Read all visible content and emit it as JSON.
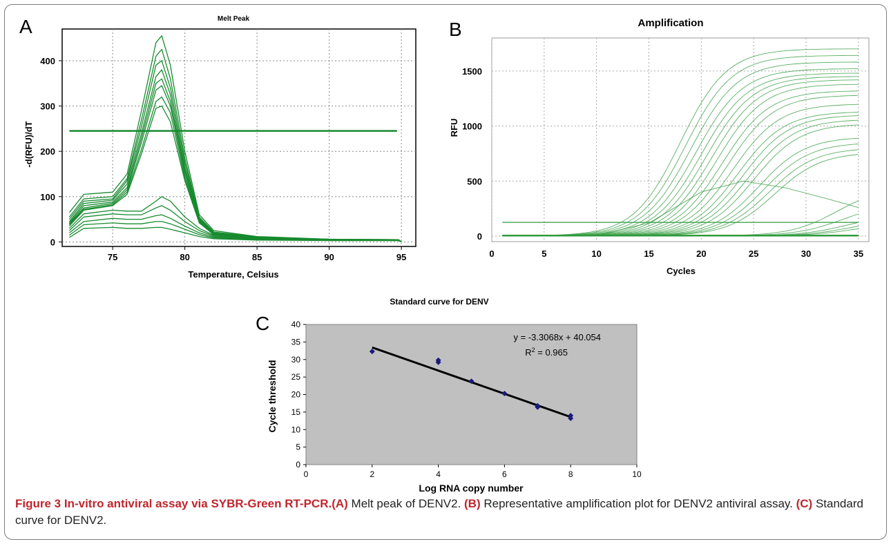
{
  "chart_data": [
    {
      "panel": "A",
      "type": "line",
      "title": "Melt Peak",
      "xlabel": "Temperature, Celsius",
      "ylabel": "-d(RFU)/dT",
      "xlim": [
        71.5,
        96
      ],
      "ylim": [
        -10,
        470
      ],
      "x_ticks": [
        75,
        80,
        85,
        90,
        95
      ],
      "y_ticks": [
        0,
        100,
        200,
        300,
        400
      ],
      "grid": true,
      "threshold": 245,
      "color": "#178a2f",
      "series": [
        {
          "values": [
            [
              72,
              65
            ],
            [
              73,
              105
            ],
            [
              75,
              110
            ],
            [
              76,
              150
            ],
            [
              77,
              290
            ],
            [
              78,
              440
            ],
            [
              78.4,
              455
            ],
            [
              79,
              390
            ],
            [
              80,
              200
            ],
            [
              81,
              60
            ],
            [
              82,
              25
            ],
            [
              85,
              12
            ],
            [
              90,
              6
            ],
            [
              94.8,
              5
            ],
            [
              95,
              0
            ]
          ]
        },
        {
          "values": [
            [
              72,
              55
            ],
            [
              73,
              95
            ],
            [
              75,
              100
            ],
            [
              76,
              140
            ],
            [
              77,
              270
            ],
            [
              78,
              410
            ],
            [
              78.4,
              425
            ],
            [
              79,
              360
            ],
            [
              80,
              185
            ],
            [
              81,
              55
            ],
            [
              82,
              22
            ],
            [
              85,
              11
            ],
            [
              90,
              6
            ],
            [
              94.8,
              5
            ],
            [
              95,
              0
            ]
          ]
        },
        {
          "values": [
            [
              72,
              50
            ],
            [
              73,
              90
            ],
            [
              75,
              95
            ],
            [
              76,
              135
            ],
            [
              77,
              255
            ],
            [
              78,
              390
            ],
            [
              78.4,
              400
            ],
            [
              79,
              340
            ],
            [
              80,
              175
            ],
            [
              81,
              52
            ],
            [
              82,
              20
            ],
            [
              85,
              10
            ],
            [
              90,
              6
            ],
            [
              94.8,
              5
            ],
            [
              95,
              0
            ]
          ]
        },
        {
          "values": [
            [
              72,
              45
            ],
            [
              73,
              85
            ],
            [
              75,
              92
            ],
            [
              76,
              128
            ],
            [
              77,
              240
            ],
            [
              78,
              365
            ],
            [
              78.4,
              380
            ],
            [
              79,
              325
            ],
            [
              80,
              165
            ],
            [
              81,
              50
            ],
            [
              82,
              20
            ],
            [
              85,
              10
            ],
            [
              90,
              5
            ],
            [
              94.8,
              5
            ],
            [
              95,
              0
            ]
          ]
        },
        {
          "values": [
            [
              72,
              42
            ],
            [
              73,
              80
            ],
            [
              75,
              88
            ],
            [
              76,
              120
            ],
            [
              77,
              230
            ],
            [
              78,
              350
            ],
            [
              78.4,
              360
            ],
            [
              79,
              310
            ],
            [
              80,
              158
            ],
            [
              81,
              48
            ],
            [
              82,
              19
            ],
            [
              85,
              9
            ],
            [
              90,
              5
            ],
            [
              94.8,
              4
            ],
            [
              95,
              0
            ]
          ]
        },
        {
          "values": [
            [
              72,
              40
            ],
            [
              73,
              75
            ],
            [
              75,
              85
            ],
            [
              76,
              115
            ],
            [
              77,
              220
            ],
            [
              78,
              335
            ],
            [
              78.4,
              345
            ],
            [
              79,
              300
            ],
            [
              80,
              150
            ],
            [
              81,
              46
            ],
            [
              82,
              18
            ],
            [
              85,
              9
            ],
            [
              90,
              5
            ],
            [
              94.8,
              4
            ],
            [
              95,
              0
            ]
          ]
        },
        {
          "values": [
            [
              72,
              38
            ],
            [
              73,
              72
            ],
            [
              75,
              82
            ],
            [
              76,
              110
            ],
            [
              77,
              205
            ],
            [
              78,
              310
            ],
            [
              78.4,
              320
            ],
            [
              79,
              285
            ],
            [
              80,
              142
            ],
            [
              81,
              44
            ],
            [
              82,
              17
            ],
            [
              85,
              9
            ],
            [
              90,
              5
            ],
            [
              94.8,
              4
            ],
            [
              95,
              0
            ]
          ]
        },
        {
          "values": [
            [
              72,
              35
            ],
            [
              73,
              70
            ],
            [
              75,
              80
            ],
            [
              76,
              105
            ],
            [
              77,
              195
            ],
            [
              78,
              295
            ],
            [
              78.4,
              300
            ],
            [
              79,
              265
            ],
            [
              80,
              135
            ],
            [
              81,
              42
            ],
            [
              82,
              16
            ],
            [
              85,
              8
            ],
            [
              90,
              5
            ],
            [
              94.8,
              4
            ],
            [
              95,
              0
            ]
          ]
        },
        {
          "values": [
            [
              72,
              30
            ],
            [
              73,
              62
            ],
            [
              75,
              70
            ],
            [
              76,
              68
            ],
            [
              77,
              68
            ],
            [
              78,
              90
            ],
            [
              78.4,
              100
            ],
            [
              79,
              90
            ],
            [
              80,
              55
            ],
            [
              81,
              30
            ],
            [
              82,
              15
            ],
            [
              85,
              8
            ],
            [
              90,
              5
            ],
            [
              94.8,
              4
            ],
            [
              95,
              0
            ]
          ]
        },
        {
          "values": [
            [
              72,
              25
            ],
            [
              73,
              55
            ],
            [
              75,
              62
            ],
            [
              76,
              60
            ],
            [
              77,
              60
            ],
            [
              78,
              75
            ],
            [
              78.4,
              80
            ],
            [
              79,
              70
            ],
            [
              80,
              45
            ],
            [
              81,
              25
            ],
            [
              82,
              13
            ],
            [
              85,
              7
            ],
            [
              90,
              4
            ],
            [
              94.8,
              4
            ],
            [
              95,
              0
            ]
          ]
        },
        {
          "values": [
            [
              72,
              20
            ],
            [
              73,
              45
            ],
            [
              75,
              52
            ],
            [
              76,
              50
            ],
            [
              77,
              50
            ],
            [
              78,
              58
            ],
            [
              78.4,
              60
            ],
            [
              79,
              52
            ],
            [
              80,
              35
            ],
            [
              81,
              20
            ],
            [
              82,
              11
            ],
            [
              85,
              6
            ],
            [
              90,
              4
            ],
            [
              94.8,
              3
            ],
            [
              95,
              0
            ]
          ]
        },
        {
          "values": [
            [
              72,
              15
            ],
            [
              73,
              38
            ],
            [
              75,
              42
            ],
            [
              76,
              40
            ],
            [
              77,
              40
            ],
            [
              78,
              45
            ],
            [
              78.4,
              45
            ],
            [
              79,
              40
            ],
            [
              80,
              28
            ],
            [
              81,
              16
            ],
            [
              82,
              9
            ],
            [
              85,
              5
            ],
            [
              90,
              3
            ],
            [
              94.8,
              3
            ],
            [
              95,
              0
            ]
          ]
        },
        {
          "values": [
            [
              72,
              10
            ],
            [
              73,
              30
            ],
            [
              75,
              32
            ],
            [
              76,
              30
            ],
            [
              77,
              30
            ],
            [
              78,
              32
            ],
            [
              78.4,
              32
            ],
            [
              79,
              28
            ],
            [
              80,
              20
            ],
            [
              81,
              12
            ],
            [
              82,
              7
            ],
            [
              85,
              4
            ],
            [
              90,
              3
            ],
            [
              94.8,
              3
            ],
            [
              95,
              0
            ]
          ]
        }
      ]
    },
    {
      "panel": "B",
      "type": "line",
      "title": "Amplification",
      "xlabel": "Cycles",
      "ylabel": "RFU",
      "xlim": [
        0,
        36
      ],
      "ylim": [
        -50,
        1800
      ],
      "x_ticks": [
        0,
        5,
        10,
        15,
        20,
        25,
        30,
        35
      ],
      "y_ticks": [
        0,
        500,
        1000,
        1500
      ],
      "grid": true,
      "threshold": 125,
      "color": "#2f9a3c",
      "curves": [
        {
          "max": 1700,
          "mid": 18,
          "k": 0.45
        },
        {
          "max": 1640,
          "mid": 18.5,
          "k": 0.45
        },
        {
          "max": 1580,
          "mid": 19,
          "k": 0.45
        },
        {
          "max": 1520,
          "mid": 19.5,
          "k": 0.45
        },
        {
          "max": 1480,
          "mid": 20,
          "k": 0.45
        },
        {
          "max": 1450,
          "mid": 20.5,
          "k": 0.45
        },
        {
          "max": 1420,
          "mid": 21,
          "k": 0.45
        },
        {
          "max": 1380,
          "mid": 21.5,
          "k": 0.45
        },
        {
          "max": 1320,
          "mid": 22,
          "k": 0.45
        },
        {
          "max": 1280,
          "mid": 22.5,
          "k": 0.45
        },
        {
          "max": 1200,
          "mid": 23,
          "k": 0.45
        },
        {
          "max": 1130,
          "mid": 23.5,
          "k": 0.45
        },
        {
          "max": 1100,
          "mid": 24,
          "k": 0.45
        },
        {
          "max": 1060,
          "mid": 24.5,
          "k": 0.45
        },
        {
          "max": 1020,
          "mid": 25,
          "k": 0.45
        },
        {
          "max": 900,
          "mid": 25.5,
          "k": 0.45
        },
        {
          "max": 850,
          "mid": 26,
          "k": 0.45
        },
        {
          "max": 800,
          "mid": 26.5,
          "k": 0.45
        },
        {
          "max": 760,
          "mid": 27,
          "k": 0.45
        },
        {
          "max": 450,
          "mid": 33,
          "k": 0.45
        },
        {
          "max": 300,
          "mid": 33.5,
          "k": 0.45
        },
        {
          "max": 200,
          "mid": 34,
          "k": 0.45
        },
        {
          "max": 160,
          "mid": 34.5,
          "k": 0.45
        },
        {
          "max": 130,
          "mid": 35,
          "k": 0.45
        }
      ],
      "hump": {
        "x": [
          1,
          10,
          15,
          20,
          24,
          28,
          32,
          35
        ],
        "y": [
          0,
          5,
          120,
          400,
          500,
          440,
          340,
          260
        ]
      }
    },
    {
      "panel": "C",
      "type": "scatter",
      "title": "Standard curve for DENV",
      "xlabel": "Log RNA copy number",
      "ylabel": "Cycle threshold",
      "xlim": [
        0,
        10
      ],
      "ylim": [
        0,
        40
      ],
      "x_ticks": [
        0,
        2,
        4,
        6,
        8,
        10
      ],
      "y_ticks": [
        0,
        5,
        10,
        15,
        20,
        25,
        30,
        35,
        40
      ],
      "grid": false,
      "background": "#c0c0c0",
      "points": [
        [
          2,
          32.3
        ],
        [
          4,
          29.8
        ],
        [
          4,
          29.2
        ],
        [
          5,
          23.8
        ],
        [
          6,
          20.3
        ],
        [
          7,
          16.8
        ],
        [
          7,
          16.4
        ],
        [
          8,
          14
        ],
        [
          8,
          13.2
        ]
      ],
      "trendline": {
        "slope": -3.3068,
        "intercept": 40.054,
        "x_range": [
          2,
          8
        ]
      },
      "equation": "y = -3.3068x + 40.054",
      "r2_label": "R",
      "r2_sup": "2",
      "r2_value": " = 0.965"
    }
  ],
  "caption": {
    "figure_label": "Figure 3 In-vitro antiviral assay via SYBR-Green RT-PCR.",
    "a_label": "(A)",
    "a_text": " Melt peak of DENV2. ",
    "b_label": "(B)",
    "b_text": " Representative amplification plot for DENV2 antiviral assay. ",
    "c_label": "(C)",
    "c_text": " Standard curve for DENV2."
  }
}
